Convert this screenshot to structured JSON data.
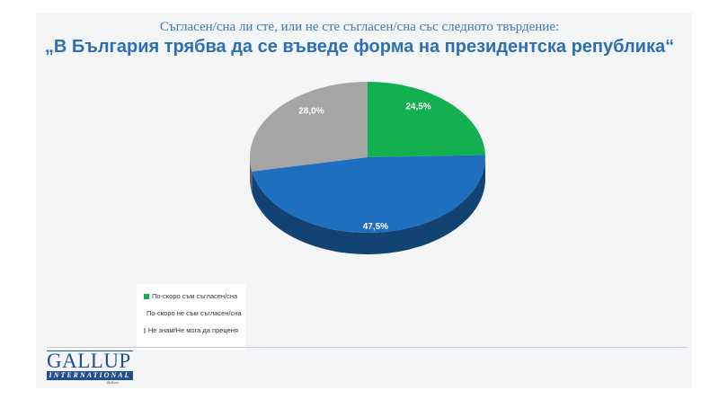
{
  "chart_data": {
    "type": "pie",
    "subtitle": "Съгласен/сна ли сте, или не сте съгласен/сна със следното твърдение:",
    "title": "„В България трябва да се въведе форма на президентска република“",
    "slices": [
      {
        "label": "По-скоро съм съгласен/сна",
        "value": 24.5,
        "value_label": "24,5%",
        "color": "#12b04e"
      },
      {
        "label": "По-скоро не съм съгласен/сна",
        "value": 47.5,
        "value_label": "47,5%",
        "color": "#1f6fc0"
      },
      {
        "label": "Не знам/Не мога да преценя",
        "value": 28.0,
        "value_label": "28,0%",
        "color": "#a5a5a5"
      }
    ],
    "legend_position": "bottom-left"
  },
  "logo": {
    "main": "GALLUP",
    "bar": "INTERNATIONAL",
    "small": "Balkans"
  }
}
